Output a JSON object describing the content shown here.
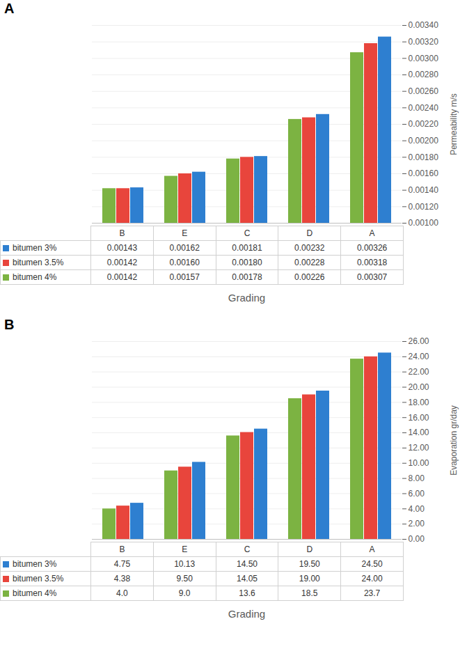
{
  "chart_data": [
    {
      "type": "bar",
      "title": "A",
      "xlabel": "Grading",
      "ylabel": "Permeability m/s",
      "categories": [
        "B",
        "E",
        "C",
        "D",
        "A"
      ],
      "series": [
        {
          "name": "bitumen 3%",
          "color": "#2e7fd0",
          "values": [
            0.00143,
            0.00162,
            0.00181,
            0.00232,
            0.00326
          ],
          "value_labels": [
            "0.00143",
            "0.00162",
            "0.00181",
            "0.00232",
            "0.00326"
          ]
        },
        {
          "name": "bitumen 3.5%",
          "color": "#e8453c",
          "values": [
            0.00142,
            0.0016,
            0.0018,
            0.00228,
            0.00318
          ],
          "value_labels": [
            "0.00142",
            "0.00160",
            "0.00180",
            "0.00228",
            "0.00318"
          ]
        },
        {
          "name": "bitumen 4%",
          "color": "#7cb342",
          "values": [
            0.00142,
            0.00157,
            0.00178,
            0.00226,
            0.00307
          ],
          "value_labels": [
            "0.00142",
            "0.00157",
            "0.00178",
            "0.00226",
            "0.00307"
          ]
        }
      ],
      "ylim": [
        0.001,
        0.0034
      ],
      "yticks": [
        {
          "value": 0.001,
          "label": "0.00100"
        },
        {
          "value": 0.0012,
          "label": "0.00120"
        },
        {
          "value": 0.0014,
          "label": "0.00140"
        },
        {
          "value": 0.0016,
          "label": "0.00160"
        },
        {
          "value": 0.0018,
          "label": "0.00180"
        },
        {
          "value": 0.002,
          "label": "0.00200"
        },
        {
          "value": 0.0022,
          "label": "0.00220"
        },
        {
          "value": 0.0024,
          "label": "0.00240"
        },
        {
          "value": 0.0026,
          "label": "0.00260"
        },
        {
          "value": 0.0028,
          "label": "0.00280"
        },
        {
          "value": 0.003,
          "label": "0.00300"
        },
        {
          "value": 0.0032,
          "label": "0.00320"
        },
        {
          "value": 0.0034,
          "label": "0.00340"
        }
      ],
      "grid": true,
      "data_labels": true
    },
    {
      "type": "bar",
      "title": "B",
      "xlabel": "Grading",
      "ylabel": "Evaporation gr/day",
      "categories": [
        "B",
        "E",
        "C",
        "D",
        "A"
      ],
      "series": [
        {
          "name": "bitumen 3%",
          "color": "#2e7fd0",
          "values": [
            4.75,
            10.13,
            14.5,
            19.5,
            24.5
          ],
          "value_labels": [
            "4.75",
            "10.13",
            "14.50",
            "19.50",
            "24.50"
          ]
        },
        {
          "name": "bitumen 3.5%",
          "color": "#e8453c",
          "values": [
            4.38,
            9.5,
            14.05,
            19,
            24
          ],
          "value_labels": [
            "4.38",
            "9.50",
            "14.05",
            "19.00",
            "24.00"
          ]
        },
        {
          "name": "bitumen 4%",
          "color": "#7cb342",
          "values": [
            4,
            9,
            13.6,
            18.5,
            23.7
          ],
          "value_labels": [
            "4.0",
            "9.0",
            "13.6",
            "18.5",
            "23.7"
          ]
        }
      ],
      "ylim": [
        0,
        26
      ],
      "yticks": [
        {
          "value": 0,
          "label": "0.00"
        },
        {
          "value": 2,
          "label": "2.00"
        },
        {
          "value": 4,
          "label": "4.00"
        },
        {
          "value": 6,
          "label": "6.00"
        },
        {
          "value": 8,
          "label": "8.00"
        },
        {
          "value": 10,
          "label": "10.00"
        },
        {
          "value": 12,
          "label": "12.00"
        },
        {
          "value": 14,
          "label": "14.00"
        },
        {
          "value": 16,
          "label": "16.00"
        },
        {
          "value": 18,
          "label": "18.00"
        },
        {
          "value": 20,
          "label": "20.00"
        },
        {
          "value": 22,
          "label": "22.00"
        },
        {
          "value": 24,
          "label": "24.00"
        },
        {
          "value": 26,
          "label": "26.00"
        }
      ],
      "grid": true,
      "data_labels": true
    }
  ]
}
